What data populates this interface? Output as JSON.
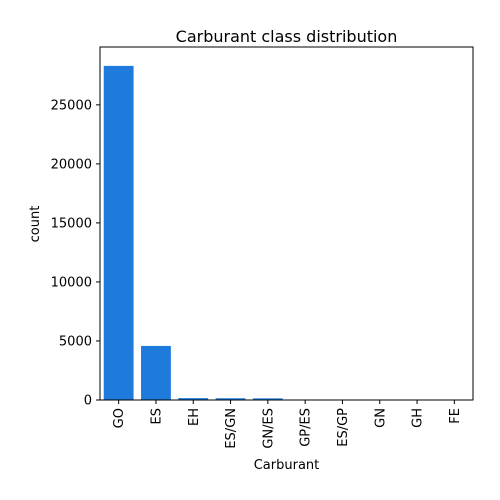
{
  "chart_data": {
    "type": "bar",
    "title": "Carburant class distribution",
    "xlabel": "Carburant",
    "ylabel": "count",
    "categories": [
      "GO",
      "ES",
      "EH",
      "ES/GN",
      "GN/ES",
      "GP/ES",
      "ES/GP",
      "GN",
      "GH",
      "FE"
    ],
    "values": [
      28300,
      4580,
      160,
      150,
      140,
      30,
      25,
      20,
      15,
      5
    ],
    "ylim": [
      0,
      29900
    ],
    "yticks": [
      0,
      5000,
      10000,
      15000,
      20000,
      25000
    ],
    "bar_color": "#1f7bdb",
    "grid": false,
    "legend": "none"
  }
}
